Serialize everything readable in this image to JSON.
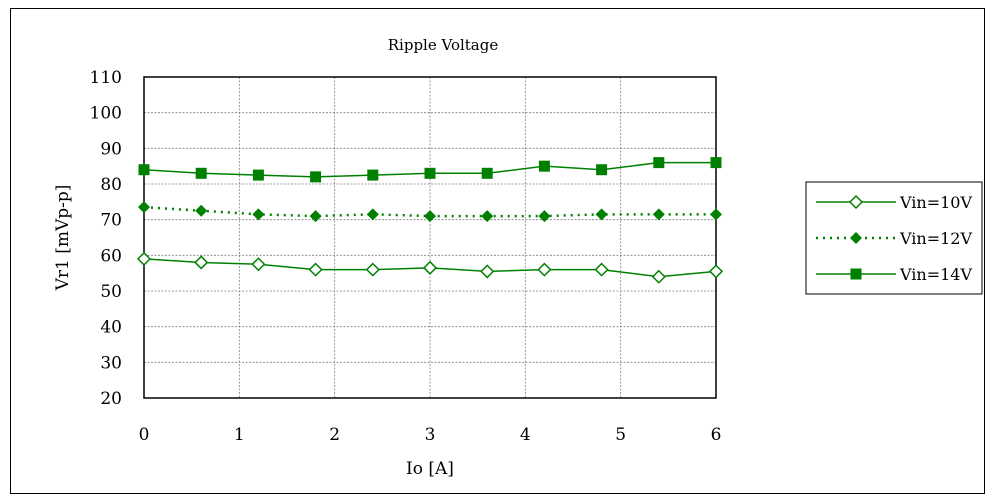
{
  "colors": {
    "series": "#008000",
    "grid": "#808080",
    "frame": "#000000"
  },
  "chart_data": {
    "type": "line",
    "title": "Ripple Voltage",
    "xlabel": "Io [A]",
    "ylabel": "Vr1 [mVp-p]",
    "xlim": [
      0,
      6
    ],
    "ylim": [
      20,
      110
    ],
    "xticks": [
      0,
      1,
      2,
      3,
      4,
      5,
      6
    ],
    "yticks": [
      20,
      30,
      40,
      50,
      60,
      70,
      80,
      90,
      100,
      110
    ],
    "grid": true,
    "legend": "right",
    "x": [
      0,
      0.6,
      1.2,
      1.8,
      2.4,
      3.0,
      3.6,
      4.2,
      4.8,
      5.4,
      6.0
    ],
    "series": [
      {
        "name": "Vin=10V",
        "marker": "diamond-open",
        "line": "solid",
        "values": [
          59,
          58,
          57.5,
          56,
          56,
          56.5,
          55.5,
          56,
          56,
          54,
          55.5
        ]
      },
      {
        "name": "Vin=12V",
        "marker": "diamond-filled",
        "line": "dotted",
        "values": [
          73.5,
          72.5,
          71.5,
          71,
          71.5,
          71,
          71,
          71,
          71.5,
          71.5,
          71.5
        ]
      },
      {
        "name": "Vin=14V",
        "marker": "square-filled",
        "line": "solid",
        "values": [
          84,
          83,
          82.5,
          82,
          82.5,
          83,
          83,
          85,
          84,
          86,
          86
        ]
      }
    ]
  }
}
